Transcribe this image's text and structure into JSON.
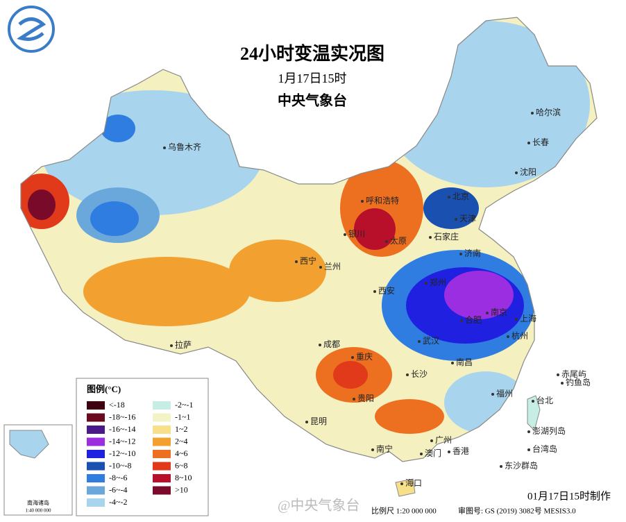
{
  "header": {
    "title": "24小时变温实况图",
    "subtitle": "1月17日15时",
    "agency": "中央气象台"
  },
  "legend": {
    "title": "图例(°C)",
    "items": [
      {
        "label": "<-18",
        "color": "#3d0010"
      },
      {
        "label": "-18~-16",
        "color": "#6a0a1e"
      },
      {
        "label": "-16~-14",
        "color": "#4a1a8a"
      },
      {
        "label": "-14~-12",
        "color": "#9b2ee0"
      },
      {
        "label": "-12~-10",
        "color": "#2020e0"
      },
      {
        "label": "-10~-8",
        "color": "#1a50b0"
      },
      {
        "label": "-8~-6",
        "color": "#2f7de0"
      },
      {
        "label": "-6~-4",
        "color": "#6aa8dc"
      },
      {
        "label": "-4~-2",
        "color": "#a8d4ee"
      },
      {
        "label": "-2~-1",
        "color": "#c6eee4"
      },
      {
        "label": "-1~1",
        "color": "#f2f4c8"
      },
      {
        "label": "1~2",
        "color": "#f8e08a"
      },
      {
        "label": "2~4",
        "color": "#f2a030"
      },
      {
        "label": "4~6",
        "color": "#ec7020"
      },
      {
        "label": "6~8",
        "color": "#e03a1a"
      },
      {
        "label": "8~10",
        "color": "#b8102a"
      },
      {
        "label": ">10",
        "color": "#7a0a2a"
      }
    ]
  },
  "cities": [
    "乌鲁木齐",
    "呼和浩特",
    "北京",
    "天津",
    "石家庄",
    "太原",
    "银川",
    "西宁",
    "兰州",
    "西安",
    "郑州",
    "济南",
    "合肥",
    "南京",
    "上海",
    "杭州",
    "武汉",
    "长沙",
    "南昌",
    "福州",
    "台北",
    "广州",
    "澳门",
    "香港",
    "南宁",
    "海口",
    "贵阳",
    "昆明",
    "成都",
    "重庆",
    "拉萨",
    "哈尔滨",
    "长春",
    "沈阳",
    "赤尾屿",
    "钓鱼岛",
    "澎湖列岛",
    "台湾岛",
    "东沙群岛"
  ],
  "inset": {
    "title": "南海诸岛",
    "scale": "1:40 000 000"
  },
  "footer": {
    "made": "01月17日15时制作",
    "scale": "比例尺 1:20 000 000",
    "review": "审图号: GS (2019) 3082号 MESIS3.0",
    "watermark": "@中央气象台"
  }
}
